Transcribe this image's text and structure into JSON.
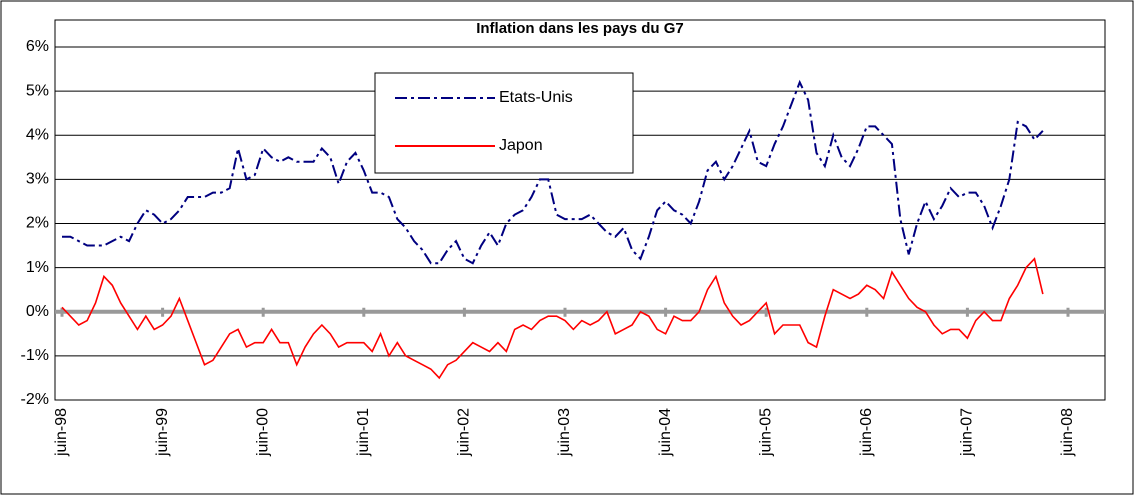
{
  "chart_data": {
    "type": "line",
    "title": "Inflation dans les pays du G7",
    "categories": [
      "juin-98",
      null,
      null,
      null,
      null,
      null,
      null,
      null,
      null,
      null,
      null,
      null,
      "juin-99",
      null,
      null,
      null,
      null,
      null,
      null,
      null,
      null,
      null,
      null,
      null,
      "juin-00",
      null,
      null,
      null,
      null,
      null,
      null,
      null,
      null,
      null,
      null,
      null,
      "juin-01",
      null,
      null,
      null,
      null,
      null,
      null,
      null,
      null,
      null,
      null,
      null,
      "juin-02",
      null,
      null,
      null,
      null,
      null,
      null,
      null,
      null,
      null,
      null,
      null,
      "juin-03",
      null,
      null,
      null,
      null,
      null,
      null,
      null,
      null,
      null,
      null,
      null,
      "juin-04",
      null,
      null,
      null,
      null,
      null,
      null,
      null,
      null,
      null,
      null,
      null,
      "juin-05",
      null,
      null,
      null,
      null,
      null,
      null,
      null,
      null,
      null,
      null,
      null,
      "juin-06",
      null,
      null,
      null,
      null,
      null,
      null,
      null,
      null,
      null,
      null,
      null,
      "juin-07",
      null,
      null,
      null,
      null,
      null,
      null,
      null,
      null,
      null,
      null,
      null,
      "juin-08"
    ],
    "series": [
      {
        "name": "Etats-Unis",
        "color": "#000080",
        "linestyle": "dashdot",
        "values": [
          1.7,
          1.7,
          1.6,
          1.5,
          1.5,
          1.5,
          1.6,
          1.7,
          1.6,
          2.0,
          2.3,
          2.2,
          2.0,
          2.1,
          2.3,
          2.6,
          2.6,
          2.6,
          2.7,
          2.7,
          2.8,
          3.7,
          3.0,
          3.1,
          3.7,
          3.5,
          3.4,
          3.5,
          3.4,
          3.4,
          3.4,
          3.7,
          3.5,
          2.9,
          3.4,
          3.6,
          3.2,
          2.7,
          2.7,
          2.6,
          2.1,
          1.9,
          1.6,
          1.4,
          1.1,
          1.1,
          1.4,
          1.6,
          1.2,
          1.1,
          1.5,
          1.8,
          1.5,
          2.0,
          2.2,
          2.3,
          2.6,
          3.0,
          3.0,
          2.2,
          2.1,
          2.1,
          2.1,
          2.2,
          2.0,
          1.8,
          1.7,
          1.9,
          1.4,
          1.2,
          1.7,
          2.3,
          2.5,
          2.3,
          2.2,
          2.0,
          2.5,
          3.2,
          3.4,
          3.0,
          3.3,
          3.7,
          4.1,
          3.4,
          3.3,
          3.8,
          4.2,
          4.7,
          5.2,
          4.8,
          3.6,
          3.3,
          4.0,
          3.5,
          3.3,
          3.7,
          4.2,
          4.2,
          4.0,
          3.8,
          2.1,
          1.3,
          2.0,
          2.5,
          2.1,
          2.4,
          2.8,
          2.6,
          2.7,
          2.7,
          2.4,
          1.9,
          2.4,
          3.0,
          4.3,
          4.2,
          3.9,
          4.1,
          null,
          null,
          null
        ]
      },
      {
        "name": "Japon",
        "color": "#ff0000",
        "linestyle": "solid",
        "values": [
          0.1,
          -0.1,
          -0.3,
          -0.2,
          0.2,
          0.8,
          0.6,
          0.2,
          -0.1,
          -0.4,
          -0.1,
          -0.4,
          -0.3,
          -0.1,
          0.3,
          -0.2,
          -0.7,
          -1.2,
          -1.1,
          -0.8,
          -0.5,
          -0.4,
          -0.8,
          -0.7,
          -0.7,
          -0.4,
          -0.7,
          -0.7,
          -1.2,
          -0.8,
          -0.5,
          -0.3,
          -0.5,
          -0.8,
          -0.7,
          -0.7,
          -0.7,
          -0.9,
          -0.5,
          -1.0,
          -0.7,
          -1.0,
          -1.1,
          -1.2,
          -1.3,
          -1.5,
          -1.2,
          -1.1,
          -0.9,
          -0.7,
          -0.8,
          -0.9,
          -0.7,
          -0.9,
          -0.4,
          -0.3,
          -0.4,
          -0.2,
          -0.1,
          -0.1,
          -0.2,
          -0.4,
          -0.2,
          -0.3,
          -0.2,
          0.0,
          -0.5,
          -0.4,
          -0.3,
          0.0,
          -0.1,
          -0.4,
          -0.5,
          -0.1,
          -0.2,
          -0.2,
          0.0,
          0.5,
          0.8,
          0.2,
          -0.1,
          -0.3,
          -0.2,
          0.0,
          0.2,
          -0.5,
          -0.3,
          -0.3,
          -0.3,
          -0.7,
          -0.8,
          -0.1,
          0.5,
          0.4,
          0.3,
          0.4,
          0.6,
          0.5,
          0.3,
          0.9,
          0.6,
          0.3,
          0.1,
          0.0,
          -0.3,
          -0.5,
          -0.4,
          -0.4,
          -0.6,
          -0.2,
          0.0,
          -0.2,
          -0.2,
          0.3,
          0.6,
          1.0,
          1.2,
          0.4,
          null,
          null,
          null
        ]
      }
    ],
    "ylim": [
      -2,
      6
    ],
    "yticks": [
      {
        "value": -2,
        "label": "-2%"
      },
      {
        "value": -1,
        "label": "-1%"
      },
      {
        "value": 0,
        "label": "0%"
      },
      {
        "value": 1,
        "label": "1%"
      },
      {
        "value": 2,
        "label": "2%"
      },
      {
        "value": 3,
        "label": "3%"
      },
      {
        "value": 4,
        "label": "4%"
      },
      {
        "value": 5,
        "label": "5%"
      },
      {
        "value": 6,
        "label": "6%"
      }
    ],
    "grid": true,
    "legend": "top"
  }
}
